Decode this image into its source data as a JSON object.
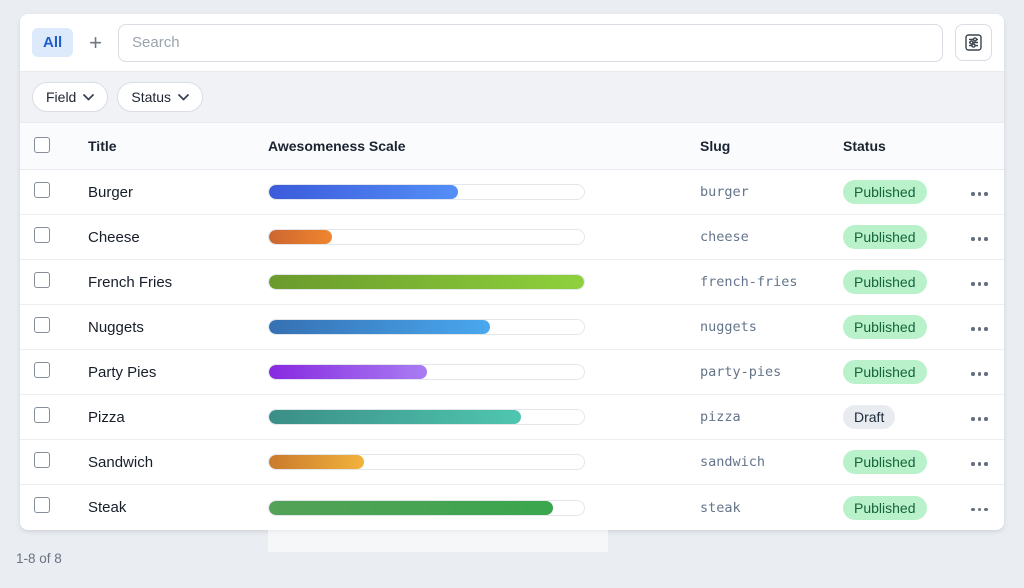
{
  "toolbar": {
    "tab_all": "All",
    "add_button": "+",
    "search_placeholder": "Search"
  },
  "filter_bar": {
    "buttons": [
      {
        "label": "Field"
      },
      {
        "label": "Status"
      }
    ]
  },
  "table": {
    "columns": {
      "title": "Title",
      "scale": "Awesomeness Scale",
      "slug": "Slug",
      "status": "Status"
    },
    "rows": [
      {
        "title": "Burger",
        "scale_percent": 60,
        "scale_gradient": [
          "#3b5bdb",
          "#548ff7"
        ],
        "slug": "burger",
        "status": "Published"
      },
      {
        "title": "Cheese",
        "scale_percent": 20,
        "scale_gradient": [
          "#cc6630",
          "#f0862e"
        ],
        "slug": "cheese",
        "status": "Published"
      },
      {
        "title": "French Fries",
        "scale_percent": 100,
        "scale_gradient": [
          "#6a9a2c",
          "#8ed13c"
        ],
        "slug": "french-fries",
        "status": "Published"
      },
      {
        "title": "Nuggets",
        "scale_percent": 70,
        "scale_gradient": [
          "#3570b2",
          "#4aa8ef"
        ],
        "slug": "nuggets",
        "status": "Published"
      },
      {
        "title": "Party Pies",
        "scale_percent": 50,
        "scale_gradient": [
          "#8729e0",
          "#a97df2"
        ],
        "slug": "party-pies",
        "status": "Published"
      },
      {
        "title": "Pizza",
        "scale_percent": 80,
        "scale_gradient": [
          "#3b8e86",
          "#4fc6b0"
        ],
        "slug": "pizza",
        "status": "Draft"
      },
      {
        "title": "Sandwich",
        "scale_percent": 30,
        "scale_gradient": [
          "#ca7a2c",
          "#f2b33c"
        ],
        "slug": "sandwich",
        "status": "Published"
      },
      {
        "title": "Steak",
        "scale_percent": 90,
        "scale_gradient": [
          "#54a157",
          "#3aa64d"
        ],
        "slug": "steak",
        "status": "Published"
      }
    ]
  },
  "status_styles": {
    "Published": {
      "bg": "#b9f2ca",
      "text": "#15633a"
    },
    "Draft": {
      "bg": "#e8ecf1",
      "text": "#1d2839"
    }
  },
  "footer": {
    "count_label": "1-8 of 8"
  }
}
